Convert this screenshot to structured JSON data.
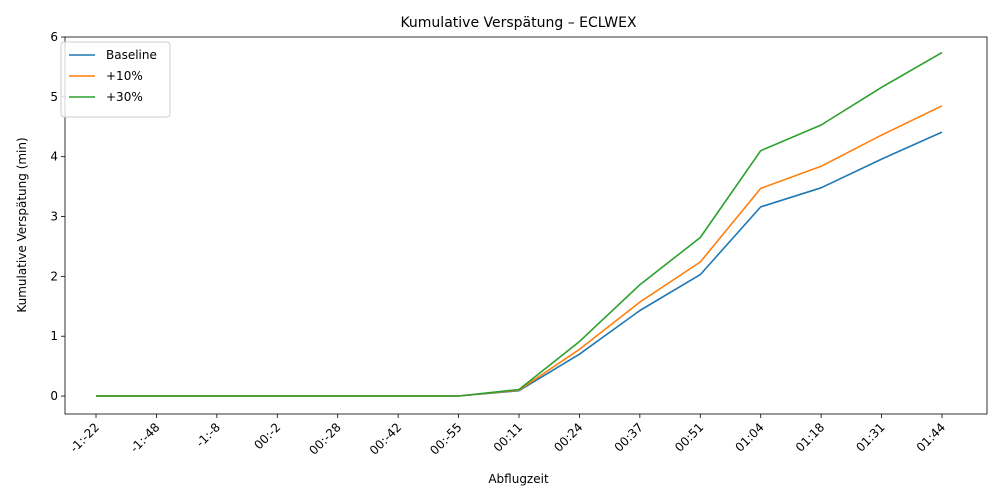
{
  "chart_data": {
    "type": "line",
    "title": "Kumulative Verspätung – ECLWEX",
    "xlabel": "Abflugzeit",
    "ylabel": "Kumulative Verspätung (min)",
    "categories": [
      "-1:-22",
      "-1:-48",
      "-1:-8",
      "00:-2",
      "00:-28",
      "00:-42",
      "00:-55",
      "00:11",
      "00:24",
      "00:37",
      "00:51",
      "01:04",
      "01:18",
      "01:31",
      "01:44"
    ],
    "ylim": [
      -0.3,
      6
    ],
    "yticks": [
      0,
      1,
      2,
      3,
      4,
      5,
      6
    ],
    "grid": false,
    "legend_position": "top-left",
    "series": [
      {
        "name": "Baseline",
        "color": "#1f77b4",
        "values": [
          0,
          0,
          0,
          0,
          0,
          0,
          0,
          0.09,
          0.7,
          1.43,
          2.03,
          3.16,
          3.48,
          3.96,
          4.41
        ]
      },
      {
        "name": "+10%",
        "color": "#ff7f0e",
        "values": [
          0,
          0,
          0,
          0,
          0,
          0,
          0,
          0.1,
          0.78,
          1.57,
          2.24,
          3.47,
          3.84,
          4.36,
          4.85
        ]
      },
      {
        "name": "+30%",
        "color": "#2ca02c",
        "values": [
          0,
          0,
          0,
          0,
          0,
          0,
          0,
          0.11,
          0.91,
          1.86,
          2.65,
          4.1,
          4.53,
          5.16,
          5.74
        ]
      }
    ]
  }
}
